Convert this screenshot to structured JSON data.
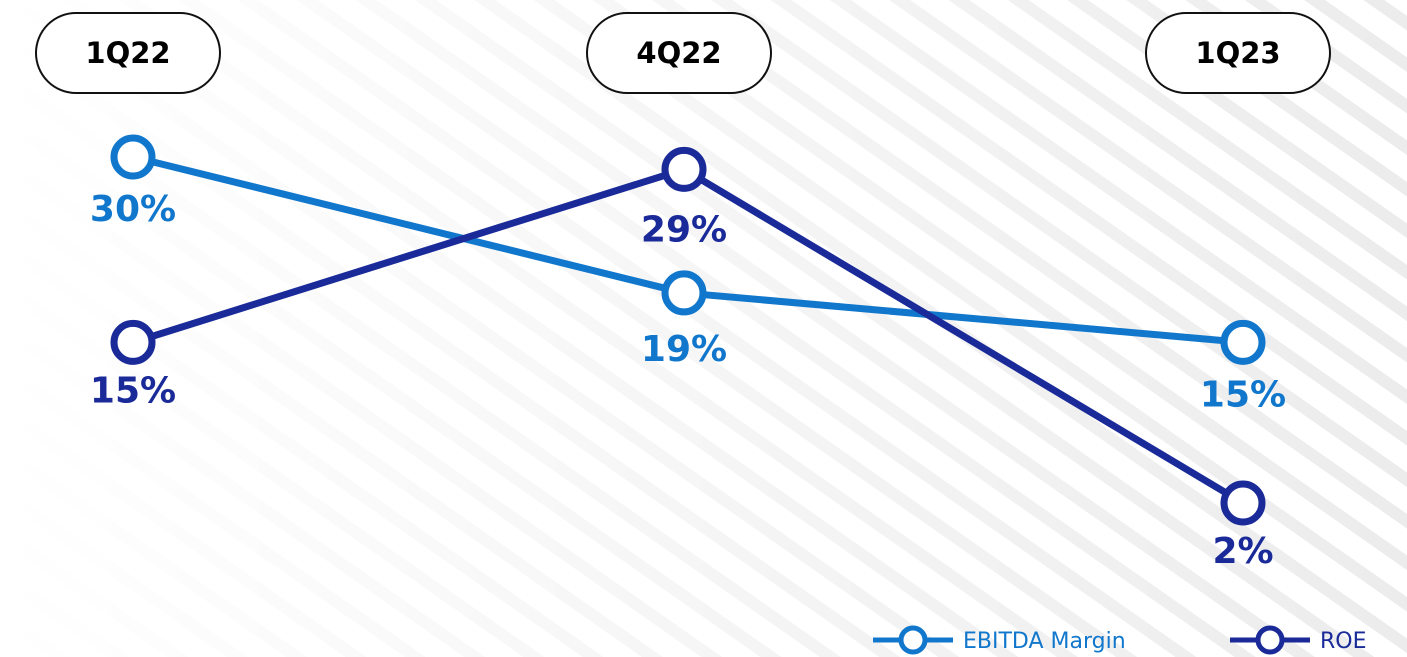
{
  "chart_data": {
    "type": "line",
    "categories": [
      "1Q22",
      "4Q22",
      "1Q23"
    ],
    "series": [
      {
        "name": "EBITDA Margin",
        "values": [
          30,
          19,
          15
        ],
        "labels": [
          "30%",
          "19%",
          "15%"
        ],
        "color": "#1177cc"
      },
      {
        "name": "ROE",
        "values": [
          15,
          29,
          2
        ],
        "labels": [
          "15%",
          "29%",
          "2%"
        ],
        "color": "#1a2a99"
      }
    ],
    "title": "",
    "xlabel": "",
    "ylabel": "",
    "ylim": [
      2,
      30
    ],
    "grid": false,
    "legend_position": "bottom-right",
    "background_color": "#ffffff",
    "stripe_color": "#ececec"
  }
}
